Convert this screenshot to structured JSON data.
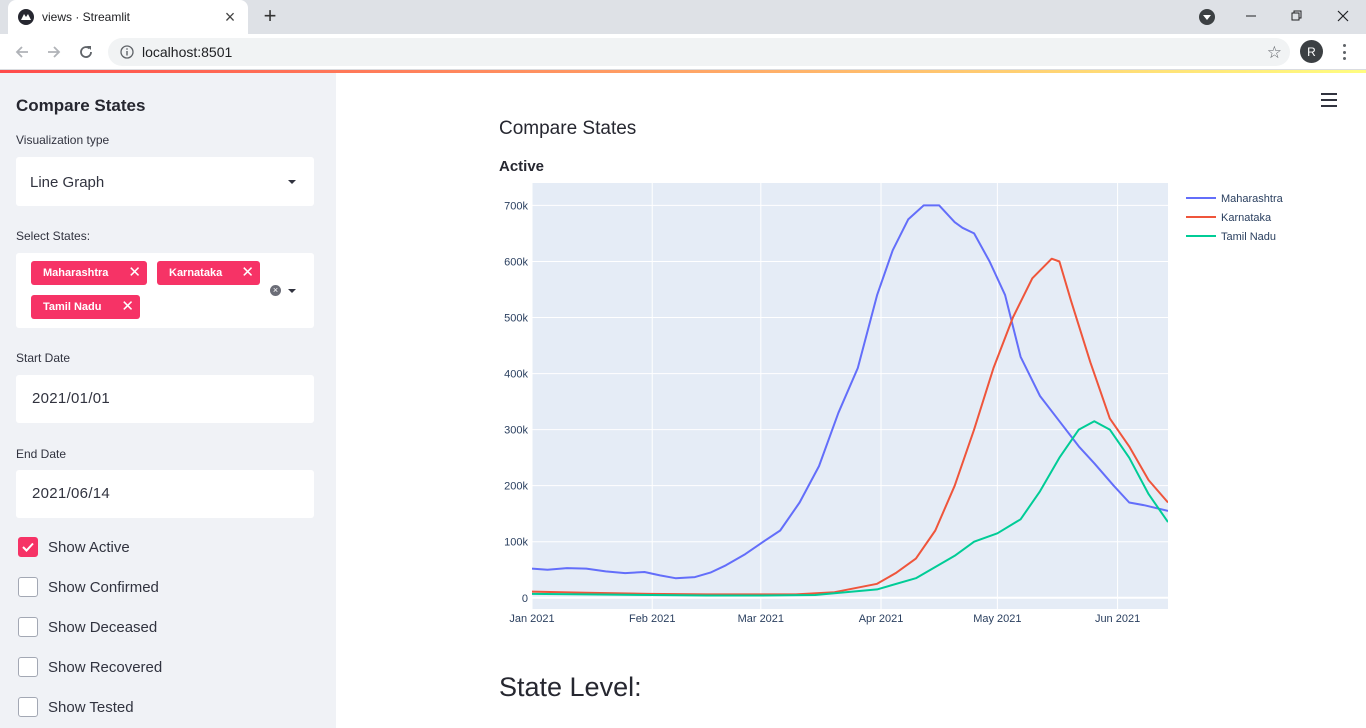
{
  "browser": {
    "tab_title": "views · Streamlit",
    "url": "localhost:8501",
    "profile_initial": "R"
  },
  "sidebar": {
    "title": "Compare States",
    "viz_label": "Visualization type",
    "viz_value": "Line Graph",
    "states_label": "Select States:",
    "selected_states": [
      "Maharashtra",
      "Karnataka",
      "Tamil Nadu"
    ],
    "start_label": "Start Date",
    "start_value": "2021/01/01",
    "end_label": "End Date",
    "end_value": "2021/06/14",
    "checkboxes": [
      {
        "label": "Show Active",
        "checked": true
      },
      {
        "label": "Show Confirmed",
        "checked": false
      },
      {
        "label": "Show Deceased",
        "checked": false
      },
      {
        "label": "Show Recovered",
        "checked": false
      },
      {
        "label": "Show Tested",
        "checked": false
      }
    ]
  },
  "main": {
    "subheader": "Compare States",
    "section_heading": "State Level:"
  },
  "colors": {
    "accent": "#f63366",
    "plot_bg": "#e5ecf6",
    "maharashtra": "#636efa",
    "karnataka": "#ef553b",
    "tamil_nadu": "#00cc96"
  },
  "chart_data": {
    "type": "line",
    "title": "Active",
    "x_ticks": [
      "Jan 2021",
      "Feb 2021",
      "Mar 2021",
      "Apr 2021",
      "May 2021",
      "Jun 2021"
    ],
    "y_ticks": [
      "0",
      "100k",
      "200k",
      "300k",
      "400k",
      "500k",
      "600k",
      "700k"
    ],
    "ylim": [
      -20000,
      740000
    ],
    "xlim": [
      "2021-01-01",
      "2021-06-14"
    ],
    "legend_position": "top-right",
    "series": [
      {
        "name": "Maharashtra",
        "x": [
          "2021-01-01",
          "2021-01-05",
          "2021-01-10",
          "2021-01-15",
          "2021-01-20",
          "2021-01-25",
          "2021-01-30",
          "2021-02-03",
          "2021-02-07",
          "2021-02-12",
          "2021-02-16",
          "2021-02-20",
          "2021-02-25",
          "2021-03-01",
          "2021-03-06",
          "2021-03-11",
          "2021-03-16",
          "2021-03-21",
          "2021-03-26",
          "2021-03-31",
          "2021-04-04",
          "2021-04-08",
          "2021-04-12",
          "2021-04-16",
          "2021-04-20",
          "2021-04-22",
          "2021-04-25",
          "2021-04-29",
          "2021-05-03",
          "2021-05-07",
          "2021-05-12",
          "2021-05-17",
          "2021-05-22",
          "2021-05-26",
          "2021-05-31",
          "2021-06-04",
          "2021-06-08",
          "2021-06-14"
        ],
        "y": [
          52000,
          50000,
          53000,
          52000,
          47000,
          44000,
          46000,
          40000,
          35000,
          37000,
          45000,
          58000,
          78000,
          97000,
          120000,
          170000,
          235000,
          330000,
          410000,
          540000,
          620000,
          675000,
          700000,
          700000,
          670000,
          660000,
          650000,
          600000,
          540000,
          430000,
          360000,
          315000,
          270000,
          240000,
          200000,
          170000,
          165000,
          155000
        ]
      },
      {
        "name": "Karnataka",
        "x": [
          "2021-01-01",
          "2021-01-15",
          "2021-01-31",
          "2021-02-15",
          "2021-02-28",
          "2021-03-10",
          "2021-03-20",
          "2021-03-31",
          "2021-04-05",
          "2021-04-10",
          "2021-04-15",
          "2021-04-20",
          "2021-04-25",
          "2021-04-30",
          "2021-05-05",
          "2021-05-10",
          "2021-05-15",
          "2021-05-17",
          "2021-05-20",
          "2021-05-25",
          "2021-05-30",
          "2021-06-04",
          "2021-06-09",
          "2021-06-14"
        ],
        "y": [
          11000,
          9000,
          7000,
          6000,
          6000,
          6000,
          10000,
          25000,
          45000,
          70000,
          120000,
          200000,
          300000,
          410000,
          500000,
          570000,
          605000,
          600000,
          530000,
          420000,
          320000,
          270000,
          210000,
          170000
        ]
      },
      {
        "name": "Tamil Nadu",
        "x": [
          "2021-01-01",
          "2021-01-15",
          "2021-02-01",
          "2021-02-15",
          "2021-03-01",
          "2021-03-15",
          "2021-03-31",
          "2021-04-10",
          "2021-04-20",
          "2021-04-25",
          "2021-05-01",
          "2021-05-07",
          "2021-05-12",
          "2021-05-17",
          "2021-05-22",
          "2021-05-26",
          "2021-05-30",
          "2021-06-04",
          "2021-06-09",
          "2021-06-14"
        ],
        "y": [
          7000,
          6000,
          5000,
          4000,
          4000,
          5000,
          15000,
          35000,
          75000,
          100000,
          115000,
          140000,
          190000,
          250000,
          300000,
          315000,
          300000,
          250000,
          185000,
          135000
        ]
      }
    ]
  }
}
